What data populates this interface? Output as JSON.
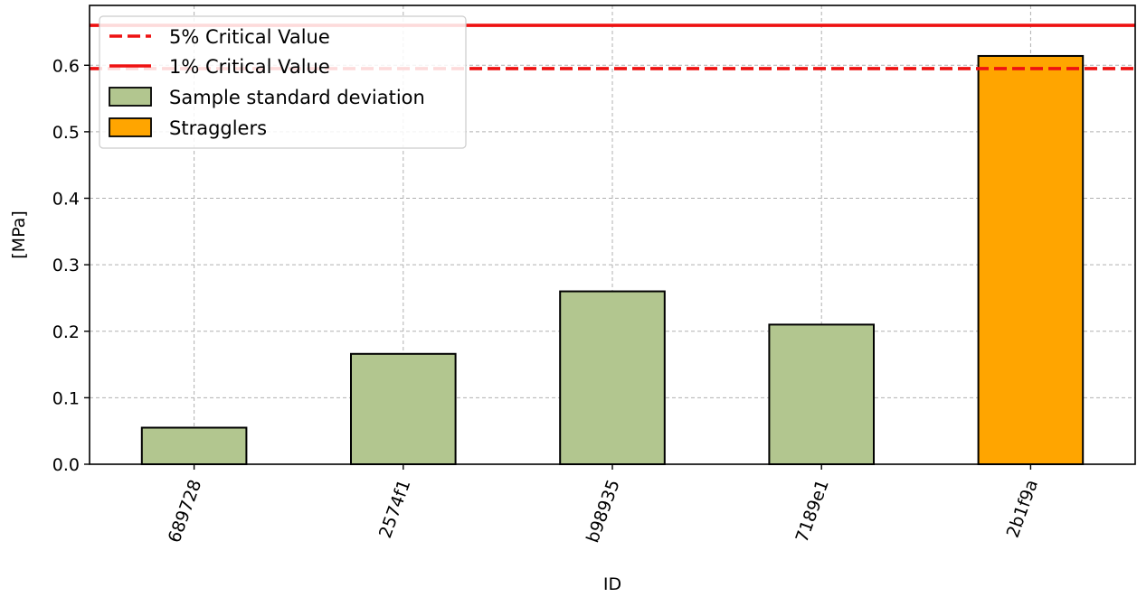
{
  "chart_data": {
    "type": "bar",
    "xlabel": "ID",
    "ylabel": "[MPa]",
    "categories": [
      "689728",
      "2574f1",
      "b98935",
      "7189e1",
      "2b1f9a"
    ],
    "values": [
      0.055,
      0.166,
      0.26,
      0.21,
      0.614
    ],
    "straggler_flags": [
      false,
      false,
      false,
      false,
      true
    ],
    "ylim": [
      0,
      0.69
    ],
    "yticks": [
      "0.0",
      "0.1",
      "0.2",
      "0.3",
      "0.4",
      "0.5",
      "0.6"
    ],
    "grid": true,
    "critical_values": [
      {
        "label": "5% Critical Value",
        "value": 0.595,
        "style": "dashed",
        "color": "#ee1111"
      },
      {
        "label": "1% Critical Value",
        "value": 0.66,
        "style": "solid",
        "color": "#ee1111"
      }
    ],
    "bar_series": [
      {
        "label": "Sample standard deviation",
        "color": "#b2c68f"
      },
      {
        "label": "Stragglers",
        "color": "#ffa500"
      }
    ],
    "legend_placement": "top-left"
  }
}
